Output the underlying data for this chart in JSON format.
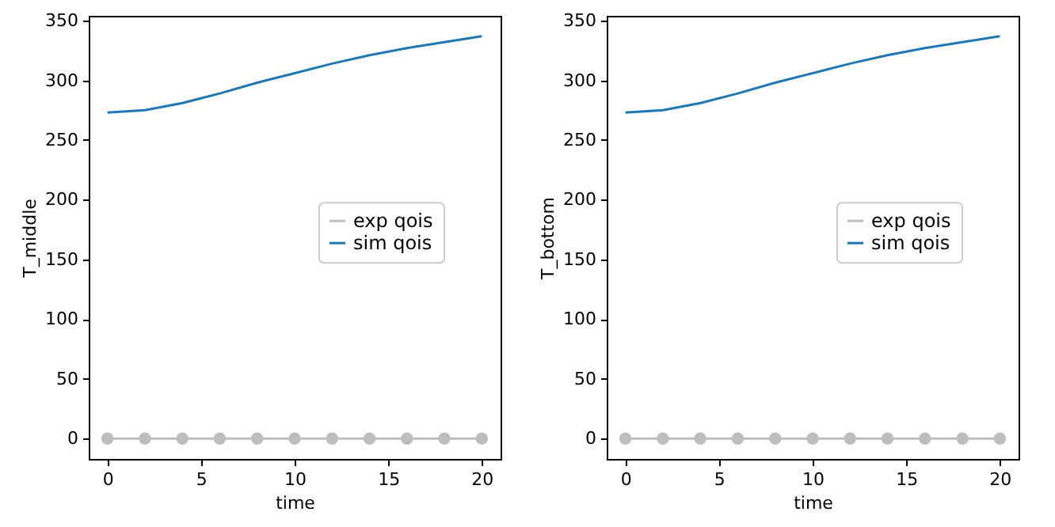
{
  "chart_data": [
    {
      "type": "line",
      "xlabel": "time",
      "ylabel": "T_middle",
      "x": [
        0,
        2,
        4,
        6,
        8,
        10,
        12,
        14,
        16,
        18,
        20
      ],
      "series": [
        {
          "name": "exp qois",
          "color": "#bdbdbd",
          "marker": "circle",
          "values": [
            0,
            0,
            0,
            0,
            0,
            0,
            0,
            0,
            0,
            0,
            0
          ]
        },
        {
          "name": "sim qois",
          "color": "#1f77b4",
          "marker": "none",
          "values": [
            273,
            275,
            281,
            289,
            298,
            306,
            314,
            321,
            327,
            332,
            337
          ]
        }
      ],
      "xlim": [
        -1,
        21
      ],
      "ylim": [
        -17,
        354
      ],
      "xticks": [
        0,
        5,
        10,
        15,
        20
      ],
      "yticks": [
        0,
        50,
        100,
        150,
        200,
        250,
        300,
        350
      ],
      "grid": false,
      "legend": "right"
    },
    {
      "type": "line",
      "xlabel": "time",
      "ylabel": "T_bottom",
      "x": [
        0,
        2,
        4,
        6,
        8,
        10,
        12,
        14,
        16,
        18,
        20
      ],
      "series": [
        {
          "name": "exp qois",
          "color": "#bdbdbd",
          "marker": "circle",
          "values": [
            0,
            0,
            0,
            0,
            0,
            0,
            0,
            0,
            0,
            0,
            0
          ]
        },
        {
          "name": "sim qois",
          "color": "#1f77b4",
          "marker": "none",
          "values": [
            273,
            275,
            281,
            289,
            298,
            306,
            314,
            321,
            327,
            332,
            337
          ]
        }
      ],
      "xlim": [
        -1,
        21
      ],
      "ylim": [
        -17,
        354
      ],
      "xticks": [
        0,
        5,
        10,
        15,
        20
      ],
      "yticks": [
        0,
        50,
        100,
        150,
        200,
        250,
        300,
        350
      ],
      "grid": false,
      "legend": "right"
    }
  ]
}
